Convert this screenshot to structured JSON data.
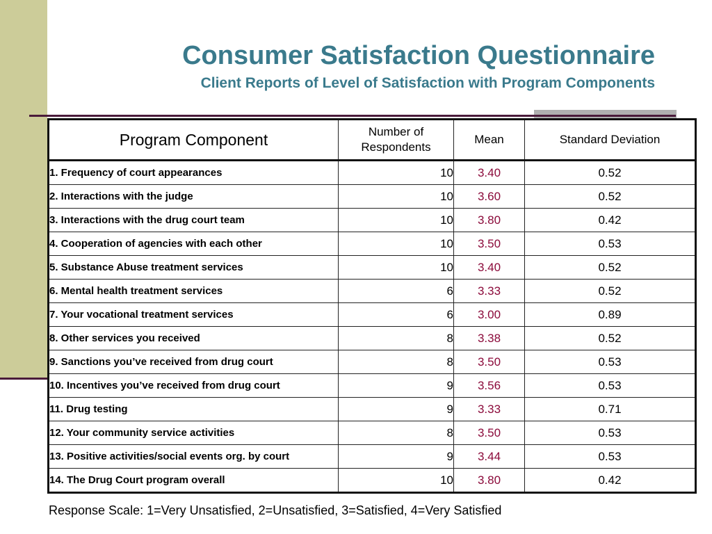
{
  "slide": {
    "title": "Consumer Satisfaction Questionnaire",
    "subtitle": "Client Reports of Level of Satisfaction with Program Components",
    "footnote": "Response Scale: 1=Very Unsatisfied, 2=Unsatisfied, 3=Satisfied, 4=Very Satisfied"
  },
  "colors": {
    "title": "#3a7a8c",
    "mean": "#8b0a3a",
    "sidebar": "#cccc99",
    "rule": "#4a1a3a"
  },
  "table": {
    "headers": {
      "component": "Program Component",
      "respondents": "Number of Respondents",
      "mean": "Mean",
      "sd": "Standard Deviation"
    },
    "rows": [
      {
        "component": "1. Frequency of court appearances",
        "n": "10",
        "mean": "3.40",
        "sd": "0.52"
      },
      {
        "component": "2. Interactions with the judge",
        "n": "10",
        "mean": "3.60",
        "sd": "0.52"
      },
      {
        "component": "3. Interactions with the drug court team",
        "n": "10",
        "mean": "3.80",
        "sd": "0.42"
      },
      {
        "component": "4. Cooperation of agencies with each other",
        "n": "10",
        "mean": "3.50",
        "sd": "0.53"
      },
      {
        "component": "5. Substance Abuse treatment services",
        "n": "10",
        "mean": "3.40",
        "sd": "0.52"
      },
      {
        "component": "6. Mental health treatment services",
        "n": "6",
        "mean": "3.33",
        "sd": "0.52"
      },
      {
        "component": "7. Your vocational treatment services",
        "n": "6",
        "mean": "3.00",
        "sd": "0.89"
      },
      {
        "component": "8. Other services you received",
        "n": "8",
        "mean": "3.38",
        "sd": "0.52"
      },
      {
        "component": "9. Sanctions you’ve received from drug court",
        "n": "8",
        "mean": "3.50",
        "sd": "0.53"
      },
      {
        "component": "10. Incentives you’ve received from drug court",
        "n": "9",
        "mean": "3.56",
        "sd": "0.53"
      },
      {
        "component": "11. Drug testing",
        "n": "9",
        "mean": "3.33",
        "sd": "0.71"
      },
      {
        "component": "12. Your community service activities",
        "n": "8",
        "mean": "3.50",
        "sd": "0.53"
      },
      {
        "component": "13. Positive activities/social events org. by court",
        "n": "9",
        "mean": "3.44",
        "sd": "0.53"
      },
      {
        "component": "14. The Drug Court program overall",
        "n": "10",
        "mean": "3.80",
        "sd": "0.42"
      }
    ]
  }
}
